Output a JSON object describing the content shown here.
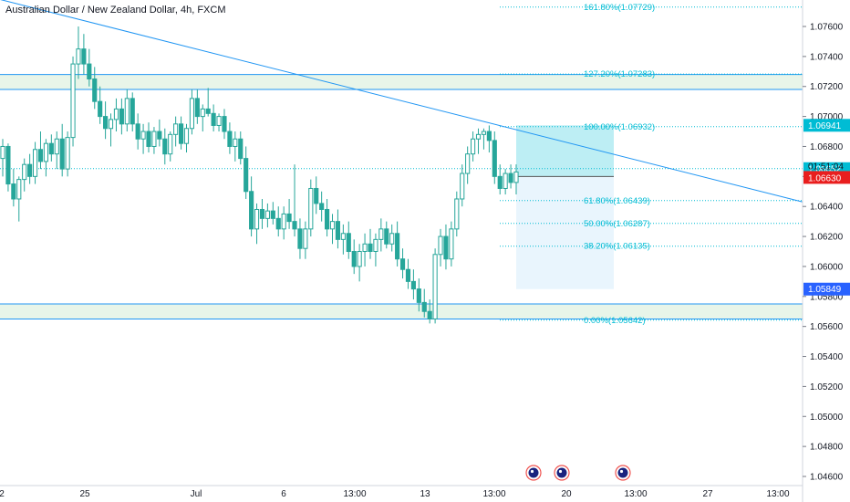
{
  "chart_data": {
    "type": "candlestick",
    "title": "Australian Dollar / New Zealand Dollar, 4h, FXCM",
    "colors": {
      "up": "#26a69a",
      "down": "#26a69a",
      "trendline": "#2196f3",
      "fib": "#00bcd4",
      "zone": "#e8f5e9",
      "zone_border": "#2196f3",
      "current": "#e91e1e",
      "marker": "#2962ff",
      "target": "#1e88e5"
    },
    "y_range": [
      1.0454,
      1.0783
    ],
    "y_ticks": [
      "1.07600",
      "1.07400",
      "1.07200",
      "1.07000",
      "1.06800",
      "1.06600",
      "1.06400",
      "1.06200",
      "1.06000",
      "1.05800",
      "1.05600",
      "1.05400",
      "1.05200",
      "1.05000",
      "1.04800",
      "1.04600"
    ],
    "x_ticks": [
      "2",
      "25",
      "Jul",
      "6",
      "13:00",
      "13",
      "13:00",
      "20",
      "13:00",
      "27",
      "13:00"
    ],
    "price_badges": {
      "target": "1.06941",
      "marker": "1.06652",
      "countdown": "01:51:04",
      "current": "1.06630",
      "low": "1.05849"
    },
    "fib_levels": [
      {
        "label": "161.80%(1.07729)",
        "value": 1.07729
      },
      {
        "label": "127.20%(1.07283)",
        "value": 1.07283
      },
      {
        "label": "100.00%(1.06932)",
        "value": 1.06932
      },
      {
        "label": "61.80%(1.06439)",
        "value": 1.06439
      },
      {
        "label": "50.00%(1.06287)",
        "value": 1.06287
      },
      {
        "label": "38.20%(1.06135)",
        "value": 1.06135
      },
      {
        "label": "0.00%(1.05642)",
        "value": 1.05642
      }
    ],
    "zones": [
      {
        "top": 1.0728,
        "bottom": 1.0718
      },
      {
        "top": 1.0575,
        "bottom": 1.0565
      }
    ],
    "trendline": {
      "start": 1.0778,
      "end": 1.0643
    },
    "position": {
      "entry": 1.066,
      "target": 1.06941,
      "stop": 1.05849
    },
    "candles": [
      [
        1.0672,
        1.0685,
        1.066,
        1.068
      ],
      [
        1.068,
        1.0682,
        1.065,
        1.0655
      ],
      [
        1.0655,
        1.0665,
        1.064,
        1.0645
      ],
      [
        1.0645,
        1.066,
        1.063,
        1.0658
      ],
      [
        1.0658,
        1.0672,
        1.065,
        1.0668
      ],
      [
        1.0668,
        1.0675,
        1.0655,
        1.066
      ],
      [
        1.066,
        1.0683,
        1.0655,
        1.0678
      ],
      [
        1.0678,
        1.069,
        1.0665,
        1.067
      ],
      [
        1.067,
        1.0685,
        1.066,
        1.0682
      ],
      [
        1.0682,
        1.0688,
        1.067,
        1.0675
      ],
      [
        1.0675,
        1.069,
        1.0665,
        1.0685
      ],
      [
        1.0685,
        1.0695,
        1.066,
        1.0665
      ],
      [
        1.0665,
        1.069,
        1.066,
        1.0686
      ],
      [
        1.0686,
        1.074,
        1.068,
        1.0735
      ],
      [
        1.0735,
        1.076,
        1.0725,
        1.0745
      ],
      [
        1.0745,
        1.0755,
        1.0728,
        1.0735
      ],
      [
        1.0735,
        1.0745,
        1.072,
        1.0725
      ],
      [
        1.0725,
        1.0733,
        1.0705,
        1.071
      ],
      [
        1.071,
        1.072,
        1.0695,
        1.07
      ],
      [
        1.07,
        1.071,
        1.0685,
        1.0692
      ],
      [
        1.0692,
        1.0702,
        1.068,
        1.0698
      ],
      [
        1.0698,
        1.0712,
        1.069,
        1.0705
      ],
      [
        1.0705,
        1.0712,
        1.0688,
        1.0695
      ],
      [
        1.0695,
        1.0718,
        1.069,
        1.0712
      ],
      [
        1.0712,
        1.0716,
        1.069,
        1.0695
      ],
      [
        1.0695,
        1.0702,
        1.0678,
        1.0685
      ],
      [
        1.0685,
        1.0695,
        1.0675,
        1.069
      ],
      [
        1.069,
        1.0696,
        1.0676,
        1.068
      ],
      [
        1.068,
        1.0693,
        1.0675,
        1.069
      ],
      [
        1.069,
        1.0698,
        1.068,
        1.0685
      ],
      [
        1.0685,
        1.0692,
        1.0668,
        1.0675
      ],
      [
        1.0675,
        1.069,
        1.067,
        1.0688
      ],
      [
        1.0688,
        1.07,
        1.068,
        1.0695
      ],
      [
        1.0695,
        1.07,
        1.0678,
        1.0682
      ],
      [
        1.0682,
        1.0695,
        1.0676,
        1.0692
      ],
      [
        1.0692,
        1.0718,
        1.0688,
        1.0712
      ],
      [
        1.0712,
        1.0718,
        1.0695,
        1.07
      ],
      [
        1.07,
        1.0708,
        1.069,
        1.0705
      ],
      [
        1.0705,
        1.0719,
        1.07,
        1.0702
      ],
      [
        1.0702,
        1.0708,
        1.069,
        1.0694
      ],
      [
        1.0694,
        1.0702,
        1.069,
        1.07
      ],
      [
        1.07,
        1.0705,
        1.0685,
        1.069
      ],
      [
        1.069,
        1.0696,
        1.0675,
        1.068
      ],
      [
        1.068,
        1.069,
        1.067,
        1.0685
      ],
      [
        1.0685,
        1.069,
        1.0668,
        1.0672
      ],
      [
        1.0672,
        1.068,
        1.0645,
        1.065
      ],
      [
        1.065,
        1.066,
        1.062,
        1.0625
      ],
      [
        1.0625,
        1.0642,
        1.0615,
        1.0638
      ],
      [
        1.0638,
        1.0645,
        1.0625,
        1.0632
      ],
      [
        1.0632,
        1.0642,
        1.0626,
        1.0637
      ],
      [
        1.0637,
        1.0643,
        1.0628,
        1.0632
      ],
      [
        1.0632,
        1.064,
        1.062,
        1.0625
      ],
      [
        1.0625,
        1.064,
        1.0618,
        1.0635
      ],
      [
        1.0635,
        1.0645,
        1.0625,
        1.063
      ],
      [
        1.063,
        1.0668,
        1.062,
        1.0625
      ],
      [
        1.0625,
        1.0632,
        1.0605,
        1.0612
      ],
      [
        1.0612,
        1.063,
        1.0605,
        1.0625
      ],
      [
        1.0625,
        1.0658,
        1.062,
        1.0652
      ],
      [
        1.0652,
        1.066,
        1.0635,
        1.0642
      ],
      [
        1.0642,
        1.065,
        1.063,
        1.0638
      ],
      [
        1.0638,
        1.0645,
        1.062,
        1.0625
      ],
      [
        1.0625,
        1.0635,
        1.0615,
        1.063
      ],
      [
        1.063,
        1.0638,
        1.0612,
        1.0618
      ],
      [
        1.0618,
        1.0628,
        1.0608,
        1.0622
      ],
      [
        1.0622,
        1.063,
        1.0605,
        1.061
      ],
      [
        1.061,
        1.0618,
        1.0595,
        1.06
      ],
      [
        1.06,
        1.0615,
        1.059,
        1.061
      ],
      [
        1.061,
        1.0622,
        1.06,
        1.0615
      ],
      [
        1.0615,
        1.0625,
        1.0605,
        1.061
      ],
      [
        1.061,
        1.0622,
        1.06,
        1.0618
      ],
      [
        1.0618,
        1.0632,
        1.061,
        1.0625
      ],
      [
        1.0625,
        1.063,
        1.0612,
        1.0615
      ],
      [
        1.0615,
        1.0628,
        1.061,
        1.0622
      ],
      [
        1.0622,
        1.063,
        1.06,
        1.0605
      ],
      [
        1.0605,
        1.0612,
        1.0592,
        1.0598
      ],
      [
        1.0598,
        1.0605,
        1.0585,
        1.059
      ],
      [
        1.059,
        1.0598,
        1.0578,
        1.0585
      ],
      [
        1.0585,
        1.0592,
        1.057,
        1.0576
      ],
      [
        1.0576,
        1.0585,
        1.0566,
        1.057
      ],
      [
        1.057,
        1.0578,
        1.0562,
        1.0565
      ],
      [
        1.0565,
        1.0612,
        1.0562,
        1.0608
      ],
      [
        1.0608,
        1.0625,
        1.06,
        1.062
      ],
      [
        1.062,
        1.0628,
        1.0598,
        1.0605
      ],
      [
        1.0605,
        1.063,
        1.06,
        1.0625
      ],
      [
        1.0625,
        1.065,
        1.062,
        1.0645
      ],
      [
        1.0645,
        1.0668,
        1.064,
        1.0662
      ],
      [
        1.0662,
        1.068,
        1.0655,
        1.0675
      ],
      [
        1.0675,
        1.069,
        1.067,
        1.0685
      ],
      [
        1.0685,
        1.0692,
        1.0675,
        1.0688
      ],
      [
        1.0688,
        1.0692,
        1.0678,
        1.069
      ],
      [
        1.069,
        1.0694,
        1.0676,
        1.0684
      ],
      [
        1.0684,
        1.069,
        1.0655,
        1.066
      ],
      [
        1.066,
        1.0668,
        1.0648,
        1.0652
      ],
      [
        1.0652,
        1.0665,
        1.0648,
        1.0662
      ],
      [
        1.0662,
        1.0668,
        1.0652,
        1.0656
      ],
      [
        1.0656,
        1.0668,
        1.0648,
        1.0663
      ]
    ],
    "events_count": 3
  }
}
